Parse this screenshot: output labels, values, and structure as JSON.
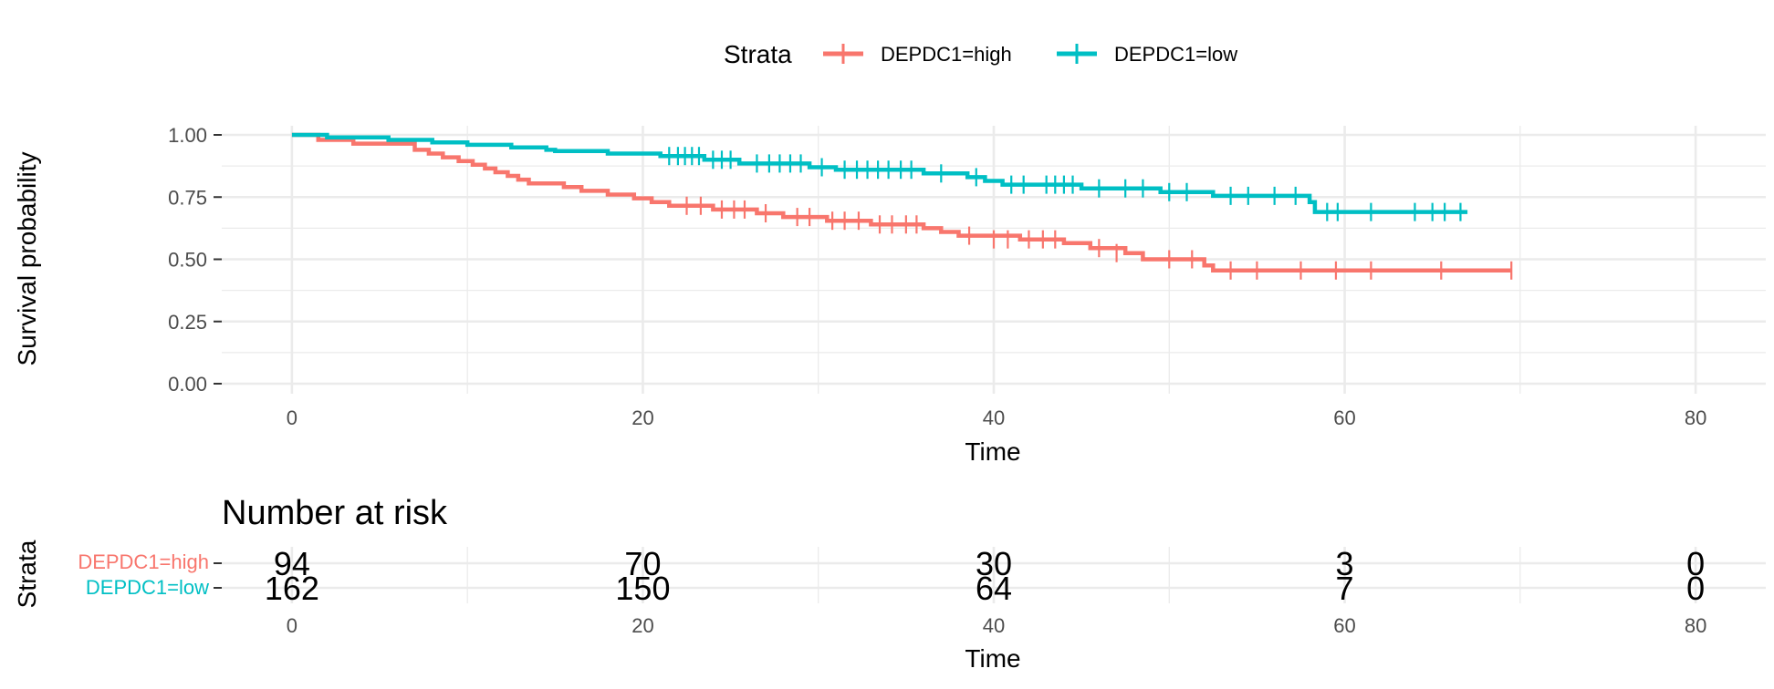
{
  "chart_data": {
    "type": "line",
    "subtype": "kaplan-meier",
    "xlabel": "Time",
    "ylabel": "Survival probability",
    "xlim": [
      -4,
      84
    ],
    "ylim": [
      0,
      1
    ],
    "x_ticks": [
      0,
      20,
      40,
      60,
      80
    ],
    "y_ticks": [
      0,
      0.25,
      0.5,
      0.75,
      1
    ],
    "y_tick_labels": [
      "0.00",
      "0.25",
      "0.50",
      "0.75",
      "1.00"
    ],
    "grid": true,
    "legend": {
      "title": "Strata",
      "position": "top",
      "entries": [
        "DEPDC1=high",
        "DEPDC1=low"
      ]
    },
    "series": [
      {
        "name": "DEPDC1=high",
        "color": "#F8766D",
        "steps": [
          [
            0,
            1.0
          ],
          [
            1.5,
            0.98
          ],
          [
            3.5,
            0.965
          ],
          [
            7,
            0.94
          ],
          [
            7.8,
            0.925
          ],
          [
            8.6,
            0.91
          ],
          [
            9.5,
            0.895
          ],
          [
            10.3,
            0.88
          ],
          [
            11,
            0.865
          ],
          [
            11.6,
            0.85
          ],
          [
            12.3,
            0.835
          ],
          [
            12.9,
            0.82
          ],
          [
            13.5,
            0.805
          ],
          [
            15.5,
            0.79
          ],
          [
            16.5,
            0.775
          ],
          [
            18,
            0.76
          ],
          [
            19.5,
            0.745
          ],
          [
            20.5,
            0.73
          ],
          [
            21.5,
            0.715
          ],
          [
            24,
            0.7
          ],
          [
            26.5,
            0.685
          ],
          [
            28,
            0.67
          ],
          [
            30.5,
            0.655
          ],
          [
            33,
            0.64
          ],
          [
            36,
            0.625
          ],
          [
            37,
            0.61
          ],
          [
            38,
            0.595
          ],
          [
            41.5,
            0.58
          ],
          [
            44,
            0.565
          ],
          [
            45.5,
            0.545
          ],
          [
            47.5,
            0.525
          ],
          [
            48.5,
            0.5
          ],
          [
            52,
            0.475
          ],
          [
            52.5,
            0.455
          ],
          [
            69.5,
            0.455
          ]
        ],
        "censored": [
          [
            22.5,
            0.715
          ],
          [
            23.3,
            0.715
          ],
          [
            24.5,
            0.7
          ],
          [
            25.2,
            0.7
          ],
          [
            25.8,
            0.7
          ],
          [
            27,
            0.685
          ],
          [
            28.8,
            0.67
          ],
          [
            29.5,
            0.67
          ],
          [
            30.8,
            0.655
          ],
          [
            31.5,
            0.655
          ],
          [
            32.3,
            0.655
          ],
          [
            33.5,
            0.64
          ],
          [
            34.2,
            0.64
          ],
          [
            35,
            0.64
          ],
          [
            35.6,
            0.64
          ],
          [
            38.6,
            0.595
          ],
          [
            40,
            0.58
          ],
          [
            40.8,
            0.58
          ],
          [
            42,
            0.58
          ],
          [
            42.8,
            0.58
          ],
          [
            43.5,
            0.58
          ],
          [
            46,
            0.545
          ],
          [
            47,
            0.525
          ],
          [
            50,
            0.5
          ],
          [
            51.3,
            0.5
          ],
          [
            53.5,
            0.455
          ],
          [
            55,
            0.455
          ],
          [
            57.5,
            0.455
          ],
          [
            59.5,
            0.455
          ],
          [
            61.5,
            0.455
          ],
          [
            65.5,
            0.455
          ],
          [
            69.5,
            0.455
          ]
        ]
      },
      {
        "name": "DEPDC1=low",
        "color": "#00BFC4",
        "steps": [
          [
            0,
            1.0
          ],
          [
            2,
            0.99
          ],
          [
            5.5,
            0.98
          ],
          [
            8,
            0.97
          ],
          [
            10,
            0.96
          ],
          [
            12.5,
            0.95
          ],
          [
            14.5,
            0.94
          ],
          [
            15,
            0.935
          ],
          [
            18,
            0.925
          ],
          [
            21,
            0.915
          ],
          [
            23.5,
            0.9
          ],
          [
            25.5,
            0.885
          ],
          [
            29.5,
            0.87
          ],
          [
            31,
            0.86
          ],
          [
            36,
            0.845
          ],
          [
            38.5,
            0.83
          ],
          [
            39.5,
            0.815
          ],
          [
            40.5,
            0.8
          ],
          [
            45,
            0.785
          ],
          [
            49.5,
            0.77
          ],
          [
            52.5,
            0.755
          ],
          [
            58,
            0.73
          ],
          [
            58.3,
            0.69
          ],
          [
            67,
            0.69
          ]
        ],
        "censored": [
          [
            21.5,
            0.915
          ],
          [
            22,
            0.915
          ],
          [
            22.4,
            0.915
          ],
          [
            22.8,
            0.915
          ],
          [
            23.2,
            0.915
          ],
          [
            24,
            0.9
          ],
          [
            24.5,
            0.9
          ],
          [
            25,
            0.9
          ],
          [
            26.5,
            0.885
          ],
          [
            27.2,
            0.885
          ],
          [
            27.8,
            0.885
          ],
          [
            28.4,
            0.885
          ],
          [
            29,
            0.885
          ],
          [
            30.2,
            0.87
          ],
          [
            31.5,
            0.86
          ],
          [
            32.2,
            0.86
          ],
          [
            32.8,
            0.86
          ],
          [
            33.4,
            0.86
          ],
          [
            34,
            0.86
          ],
          [
            34.7,
            0.86
          ],
          [
            35.3,
            0.86
          ],
          [
            37,
            0.845
          ],
          [
            39,
            0.83
          ],
          [
            41,
            0.8
          ],
          [
            41.7,
            0.8
          ],
          [
            43,
            0.8
          ],
          [
            43.5,
            0.8
          ],
          [
            44,
            0.8
          ],
          [
            44.5,
            0.8
          ],
          [
            46,
            0.785
          ],
          [
            47.5,
            0.785
          ],
          [
            48.5,
            0.785
          ],
          [
            50,
            0.77
          ],
          [
            51,
            0.77
          ],
          [
            53.5,
            0.755
          ],
          [
            54.5,
            0.755
          ],
          [
            56,
            0.755
          ],
          [
            57.2,
            0.755
          ],
          [
            59,
            0.69
          ],
          [
            59.6,
            0.69
          ],
          [
            61.5,
            0.69
          ],
          [
            64,
            0.69
          ],
          [
            65,
            0.69
          ],
          [
            65.7,
            0.69
          ],
          [
            66.6,
            0.69
          ]
        ]
      }
    ],
    "risk_table": {
      "title": "Number at risk",
      "y_title": "Strata",
      "xlabel": "Time",
      "times": [
        0,
        20,
        40,
        60,
        80
      ],
      "rows": [
        {
          "name": "DEPDC1=high",
          "color": "#F8766D",
          "counts": [
            94,
            70,
            30,
            3,
            0
          ]
        },
        {
          "name": "DEPDC1=low",
          "color": "#00BFC4",
          "counts": [
            162,
            150,
            64,
            7,
            0
          ]
        }
      ]
    }
  }
}
